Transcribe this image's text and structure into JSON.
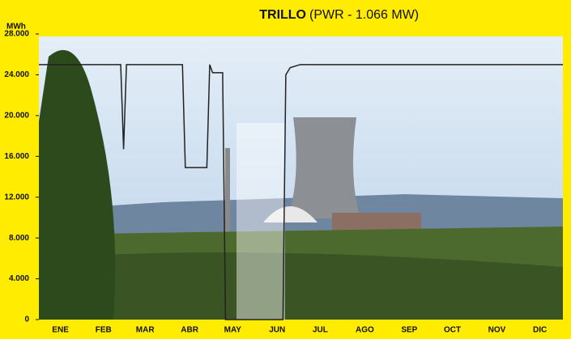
{
  "chart_data": {
    "type": "line",
    "title": "TRILLO",
    "subtitle": "(PWR - 1.066 MW)",
    "y_label": "MWh",
    "x": [
      0,
      57,
      59,
      61,
      100,
      102,
      117,
      119,
      121,
      128,
      130,
      170,
      172,
      175,
      182,
      200,
      260,
      290,
      340,
      365
    ],
    "series": [
      {
        "name": "TRILLO",
        "color": "#222222",
        "values": [
          25000,
          25000,
          16700,
          25000,
          25000,
          14900,
          14900,
          25000,
          24200,
          24200,
          0,
          0,
          24000,
          24700,
          25000,
          25000,
          25000,
          25000,
          25000,
          25000
        ]
      }
    ],
    "xlim": [
      0,
      365
    ],
    "xticks": [
      {
        "value": 15,
        "label": "ENE"
      },
      {
        "value": 45,
        "label": "FEB"
      },
      {
        "value": 74,
        "label": "MAR"
      },
      {
        "value": 105,
        "label": "ABR"
      },
      {
        "value": 135,
        "label": "MAY"
      },
      {
        "value": 166,
        "label": "JUN"
      },
      {
        "value": 196,
        "label": "JUL"
      },
      {
        "value": 227,
        "label": "AGO"
      },
      {
        "value": 258,
        "label": "SEP"
      },
      {
        "value": 288,
        "label": "OCT"
      },
      {
        "value": 319,
        "label": "NOV"
      },
      {
        "value": 349,
        "label": "DIC"
      }
    ],
    "ylim": [
      0,
      28000
    ],
    "yticks": [
      0,
      {
        "value": 4000,
        "label": "4.000"
      },
      {
        "value": 8000,
        "label": "8.000"
      },
      {
        "value": 12000,
        "label": "12.000"
      },
      {
        "value": 16000,
        "label": "16.000"
      },
      {
        "value": 20000,
        "label": "20.000"
      },
      {
        "value": 24000,
        "label": "24.000"
      },
      {
        "value": 28000,
        "label": "28.000"
      }
    ]
  }
}
